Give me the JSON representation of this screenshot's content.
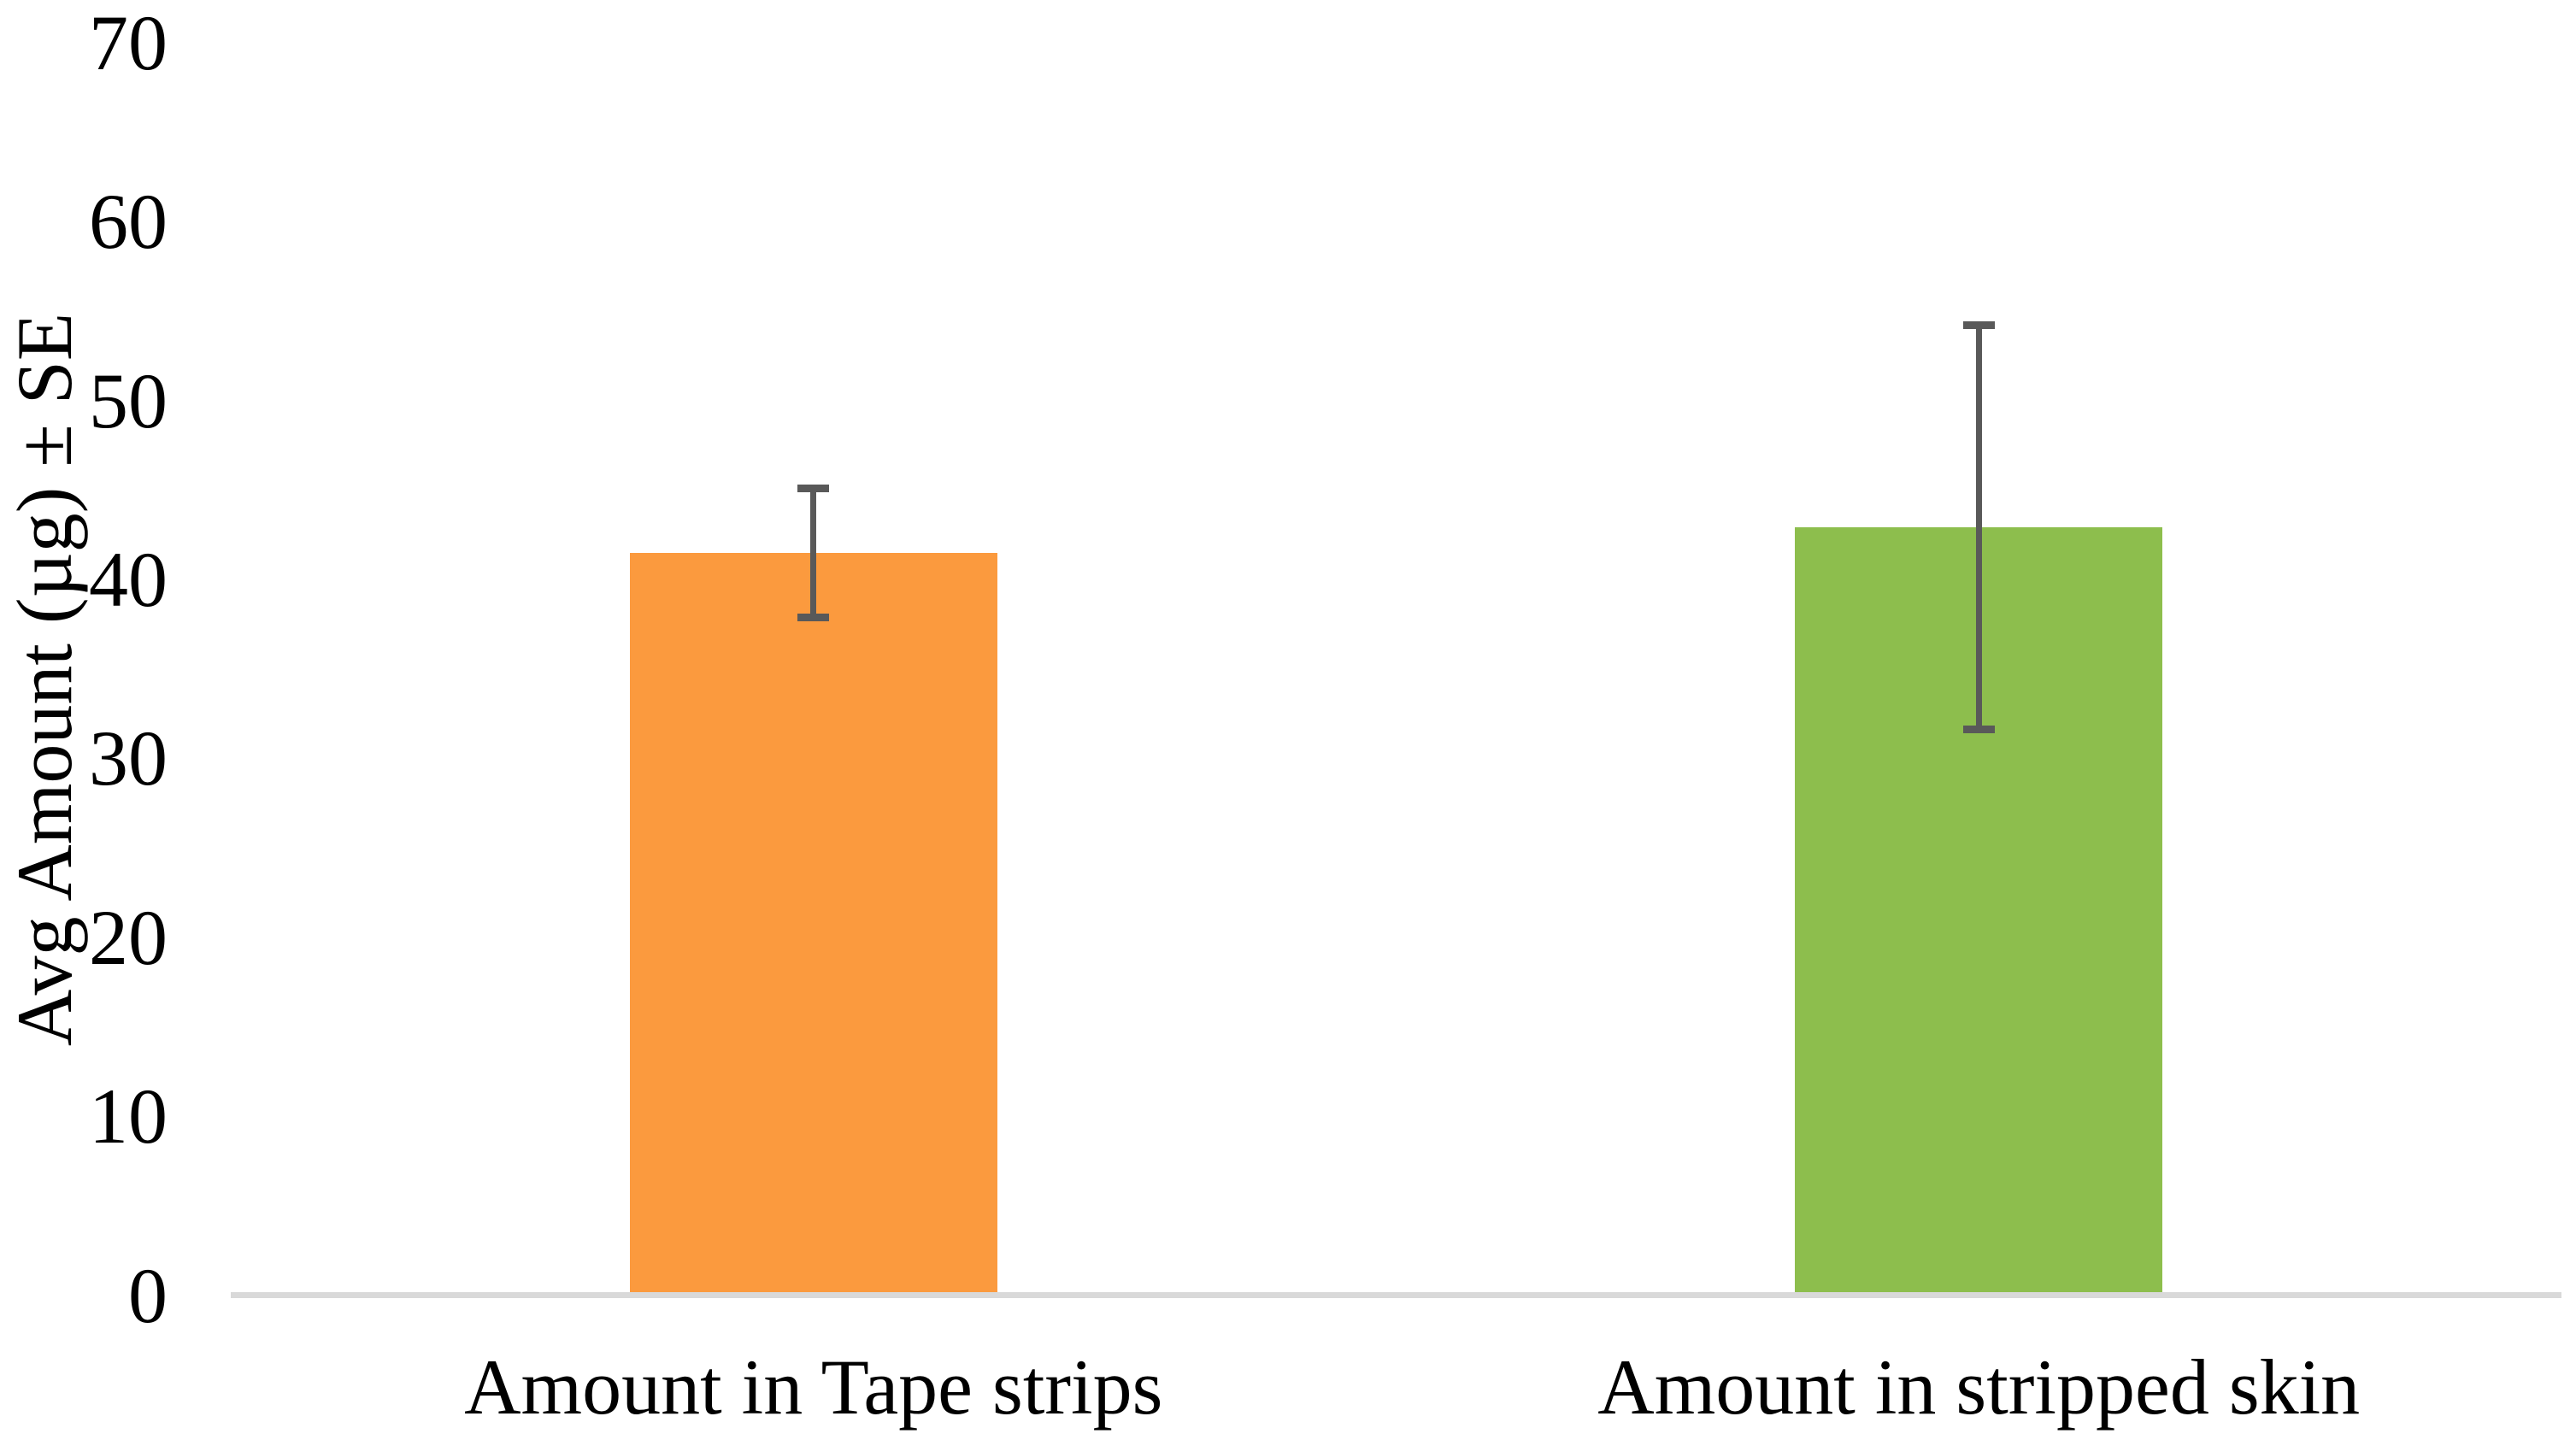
{
  "chart_data": {
    "type": "bar",
    "categories": [
      "Amount in Tape strips",
      "Amount in stripped skin"
    ],
    "values": [
      41.5,
      42.9
    ],
    "error_se": [
      3.6,
      11.3
    ],
    "title": "",
    "xlabel": "",
    "ylabel": "Avg Amount (µg) ± SE",
    "ylim": [
      0,
      70
    ],
    "y_ticks": [
      0,
      10,
      20,
      30,
      40,
      50,
      60,
      70
    ],
    "grid": false,
    "legend": false,
    "bar_colors": [
      "#FB9A3E",
      "#8DBE4D"
    ],
    "error_bar_color": "#595959",
    "axis_line_color": "#D9D9D9",
    "text_color": "#000000",
    "background_color": "#FFFFFF"
  }
}
